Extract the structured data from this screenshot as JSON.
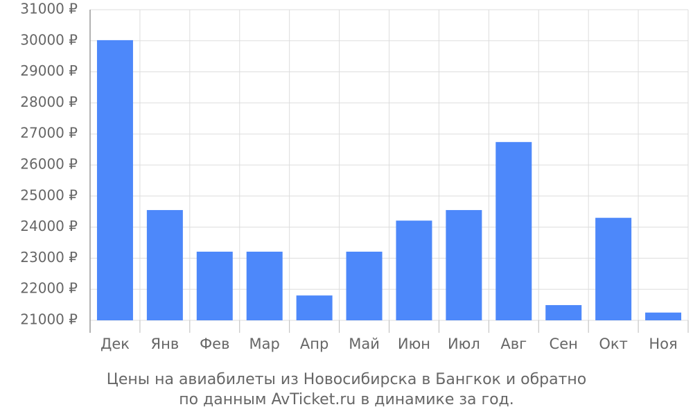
{
  "chart_data": {
    "type": "bar",
    "title_lines": [
      "Цены на авиабилеты из Новосибирска в Бангкок и обратно",
      "по данным AvTicket.ru в динамике за год."
    ],
    "categories": [
      "Дек",
      "Янв",
      "Фев",
      "Мар",
      "Апр",
      "Май",
      "Июн",
      "Июл",
      "Авг",
      "Сен",
      "Окт",
      "Ноя"
    ],
    "values": [
      30020,
      24550,
      23210,
      23210,
      21800,
      23210,
      24210,
      24550,
      26740,
      21490,
      24300,
      21250
    ],
    "color": "#4d88fa",
    "ylim": [
      21000,
      31000
    ],
    "yticks": [
      {
        "value": 21000,
        "label": "21000 ₽"
      },
      {
        "value": 22000,
        "label": "22000 ₽"
      },
      {
        "value": 23000,
        "label": "23000 ₽"
      },
      {
        "value": 24000,
        "label": "24000 ₽"
      },
      {
        "value": 25000,
        "label": "25000 ₽"
      },
      {
        "value": 26000,
        "label": "26000 ₽"
      },
      {
        "value": 27000,
        "label": "27000 ₽"
      },
      {
        "value": 28000,
        "label": "28000 ₽"
      },
      {
        "value": 29000,
        "label": "29000 ₽"
      },
      {
        "value": 30000,
        "label": "30000 ₽"
      },
      {
        "value": 31000,
        "label": "31000 ₽"
      }
    ],
    "grid": true
  }
}
